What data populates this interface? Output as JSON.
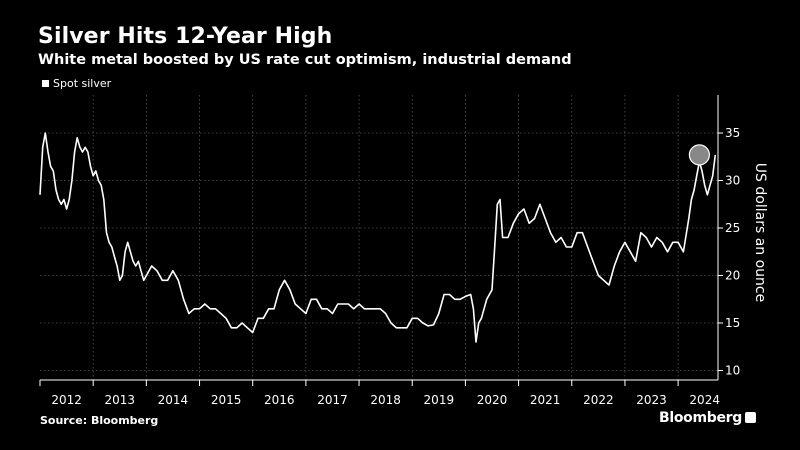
{
  "header": {
    "title": "Silver Hits 12-Year High",
    "subtitle": "White metal boosted by US rate cut optimism, industrial demand"
  },
  "footer": {
    "source": "Source: Bloomberg",
    "brand": "Bloomberg"
  },
  "colors": {
    "background": "#000000",
    "line": "#ffffff",
    "grid": "#555555",
    "marker": "#888888"
  },
  "chart_data": {
    "type": "line",
    "title": "Silver Hits 12-Year High",
    "subtitle": "White metal boosted by US rate cut optimism, industrial demand",
    "ylabel": "US dollars an ounce",
    "xlabel": "",
    "y_axis_side": "right",
    "ylim": [
      9,
      39
    ],
    "xlim": [
      2012.0,
      2024.75
    ],
    "yticks": [
      10,
      15,
      20,
      25,
      30,
      35
    ],
    "xtick_labels": [
      "2012",
      "2013",
      "2014",
      "2015",
      "2016",
      "2017",
      "2018",
      "2019",
      "2020",
      "2021",
      "2022",
      "2023",
      "2024"
    ],
    "grid": "dotted",
    "legend": "top-left",
    "highlight": {
      "x": 2024.4,
      "y": 32.7,
      "shape": "circle"
    },
    "series": [
      {
        "name": "Spot silver",
        "x": [
          2012.0,
          2012.05,
          2012.1,
          2012.15,
          2012.2,
          2012.25,
          2012.3,
          2012.35,
          2012.4,
          2012.45,
          2012.5,
          2012.55,
          2012.6,
          2012.65,
          2012.7,
          2012.75,
          2012.8,
          2012.85,
          2012.9,
          2012.95,
          2013.0,
          2013.05,
          2013.1,
          2013.15,
          2013.2,
          2013.25,
          2013.3,
          2013.35,
          2013.4,
          2013.45,
          2013.5,
          2013.55,
          2013.6,
          2013.65,
          2013.7,
          2013.75,
          2013.8,
          2013.85,
          2013.9,
          2013.95,
          2014.0,
          2014.1,
          2014.2,
          2014.3,
          2014.4,
          2014.5,
          2014.6,
          2014.7,
          2014.8,
          2014.9,
          2015.0,
          2015.1,
          2015.2,
          2015.3,
          2015.4,
          2015.5,
          2015.6,
          2015.7,
          2015.8,
          2015.9,
          2016.0,
          2016.1,
          2016.2,
          2016.3,
          2016.4,
          2016.5,
          2016.6,
          2016.7,
          2016.8,
          2016.9,
          2017.0,
          2017.1,
          2017.2,
          2017.3,
          2017.4,
          2017.5,
          2017.6,
          2017.7,
          2017.8,
          2017.9,
          2018.0,
          2018.1,
          2018.2,
          2018.3,
          2018.4,
          2018.5,
          2018.6,
          2018.7,
          2018.8,
          2018.9,
          2019.0,
          2019.1,
          2019.2,
          2019.3,
          2019.4,
          2019.5,
          2019.6,
          2019.7,
          2019.8,
          2019.9,
          2020.0,
          2020.1,
          2020.15,
          2020.2,
          2020.25,
          2020.3,
          2020.4,
          2020.5,
          2020.55,
          2020.6,
          2020.65,
          2020.7,
          2020.8,
          2020.9,
          2021.0,
          2021.1,
          2021.2,
          2021.3,
          2021.4,
          2021.5,
          2021.6,
          2021.7,
          2021.8,
          2021.9,
          2022.0,
          2022.1,
          2022.2,
          2022.3,
          2022.4,
          2022.5,
          2022.6,
          2022.7,
          2022.8,
          2022.9,
          2023.0,
          2023.1,
          2023.2,
          2023.3,
          2023.4,
          2023.5,
          2023.6,
          2023.7,
          2023.8,
          2023.9,
          2024.0,
          2024.1,
          2024.2,
          2024.25,
          2024.3,
          2024.35,
          2024.4,
          2024.45,
          2024.5,
          2024.55,
          2024.6,
          2024.65,
          2024.7
        ],
        "values": [
          28.5,
          33.5,
          35.0,
          33.0,
          31.5,
          31.0,
          29.0,
          28.0,
          27.5,
          28.0,
          27.0,
          28.0,
          30.0,
          33.0,
          34.5,
          33.5,
          33.0,
          33.5,
          33.0,
          31.5,
          30.5,
          31.0,
          30.0,
          29.5,
          28.0,
          24.5,
          23.5,
          23.0,
          22.0,
          21.0,
          19.5,
          20.0,
          22.5,
          23.5,
          22.5,
          21.5,
          21.0,
          21.5,
          20.5,
          19.5,
          20.0,
          21.0,
          20.5,
          19.5,
          19.5,
          20.5,
          19.5,
          17.5,
          16.0,
          16.5,
          16.5,
          17.0,
          16.5,
          16.5,
          16.0,
          15.5,
          14.5,
          14.5,
          15.0,
          14.5,
          14.0,
          15.5,
          15.5,
          16.5,
          16.5,
          18.5,
          19.5,
          18.5,
          17.0,
          16.5,
          16.0,
          17.5,
          17.5,
          16.5,
          16.5,
          16.0,
          17.0,
          17.0,
          17.0,
          16.5,
          17.0,
          16.5,
          16.5,
          16.5,
          16.5,
          16.0,
          15.0,
          14.5,
          14.5,
          14.5,
          15.5,
          15.5,
          15.0,
          14.7,
          14.8,
          16.0,
          18.0,
          18.0,
          17.5,
          17.5,
          17.8,
          18.0,
          16.5,
          13.0,
          15.0,
          15.5,
          17.5,
          18.5,
          23.0,
          27.5,
          28.0,
          24.0,
          24.0,
          25.5,
          26.5,
          27.0,
          25.5,
          26.0,
          27.5,
          26.0,
          24.5,
          23.5,
          24.0,
          23.0,
          23.0,
          24.5,
          24.5,
          23.0,
          21.5,
          20.0,
          19.5,
          19.0,
          21.0,
          22.5,
          23.5,
          22.5,
          21.5,
          24.5,
          24.0,
          23.0,
          24.0,
          23.5,
          22.5,
          23.5,
          23.5,
          22.5,
          26.0,
          28.0,
          29.0,
          30.5,
          32.0,
          31.0,
          29.5,
          28.5,
          29.5,
          30.5,
          32.7
        ]
      }
    ]
  }
}
